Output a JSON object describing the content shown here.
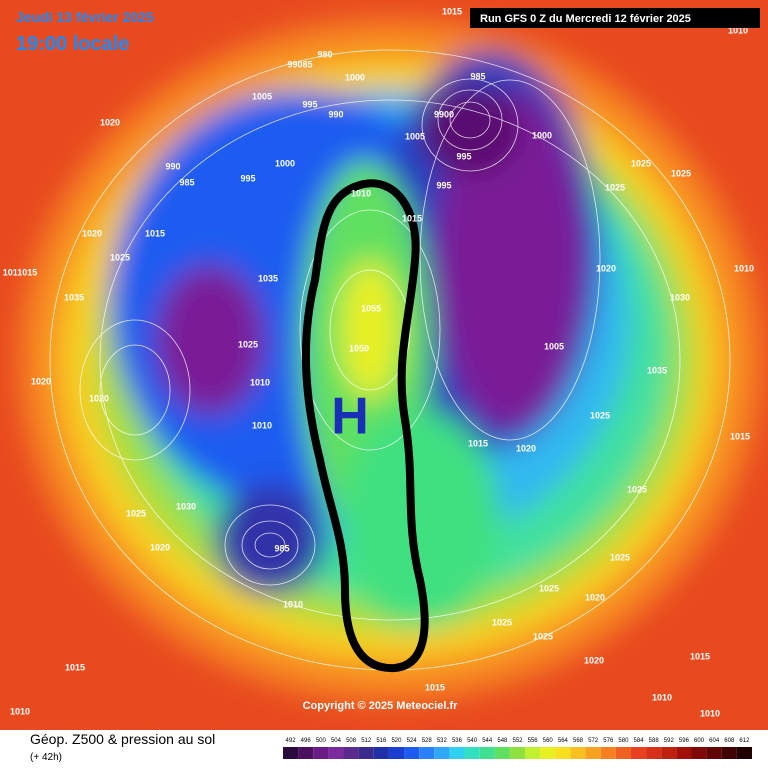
{
  "header": {
    "date": "Jeudi 13 février 2025",
    "time": "19:00 locale",
    "run": "Run GFS 0 Z du Mercredi 12 février 2025"
  },
  "high_label": "H",
  "copyright": "Copyright © 2025 Meteociel.fr",
  "isobar_labels": [
    "1015",
    "1010",
    "980",
    "99085",
    "1000",
    "985",
    "1005",
    "995",
    "990",
    "1020",
    "9900",
    "1000",
    "1005",
    "995",
    "990",
    "1000",
    "985",
    "995",
    "1025",
    "1025",
    "1010",
    "995",
    "1025",
    "1015",
    "1020",
    "1015",
    "1025",
    "1011015",
    "1035",
    "1020",
    "1010",
    "1030",
    "1035",
    "1055",
    "1025",
    "1050",
    "1005",
    "1020",
    "1010",
    "1035",
    "1020",
    "1025",
    "1020",
    "1015",
    "1010",
    "1015",
    "1025",
    "1025",
    "1030",
    "985",
    "1020",
    "1025",
    "1025",
    "1020",
    "1010",
    "1025",
    "1025",
    "1020",
    "1015",
    "1015",
    "1010",
    "1015",
    "1010",
    "1010"
  ],
  "footer": {
    "title": "Géop. Z500 & pression au sol",
    "lead": "(+ 42h)"
  },
  "legend": {
    "ticks": [
      492,
      496,
      500,
      504,
      508,
      512,
      516,
      520,
      524,
      528,
      532,
      536,
      540,
      544,
      548,
      552,
      556,
      560,
      564,
      568,
      572,
      576,
      580,
      584,
      588,
      592,
      596,
      600,
      604,
      608,
      612
    ],
    "colors": [
      "#2b0a3d",
      "#4a0f5e",
      "#6a1b86",
      "#7d2a9c",
      "#5a2a8c",
      "#3a2a8c",
      "#2030a8",
      "#1a3fd0",
      "#1e5cf0",
      "#2a80f8",
      "#30a8f8",
      "#30d0f0",
      "#30e0c0",
      "#40e090",
      "#60e060",
      "#90e040",
      "#c0f030",
      "#e8f020",
      "#f8e020",
      "#f8c020",
      "#f8a020",
      "#f88020",
      "#f06020",
      "#e84020",
      "#d83018",
      "#c02010",
      "#a01008",
      "#800808",
      "#600404",
      "#400202",
      "#200000"
    ]
  }
}
